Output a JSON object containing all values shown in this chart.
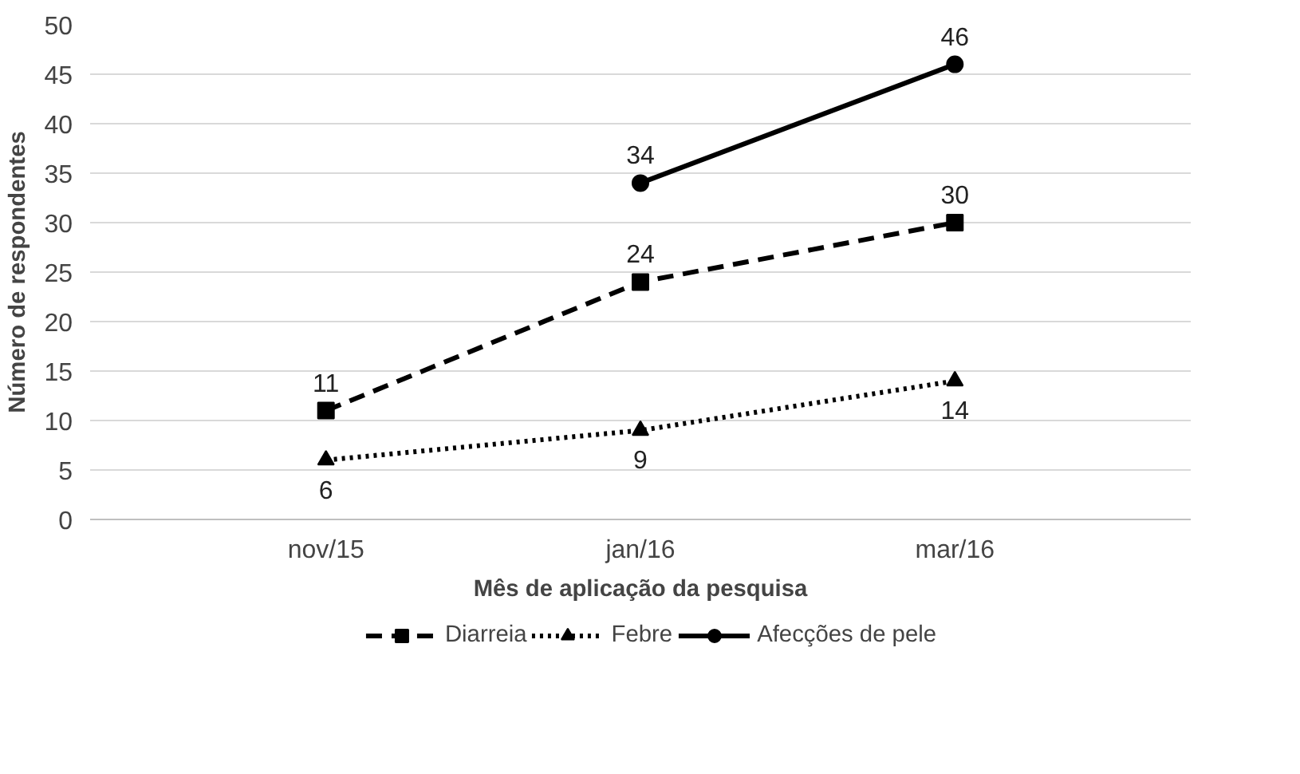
{
  "chart_data": {
    "type": "line",
    "xlabel": "Mês de aplicação da pesquisa",
    "ylabel": "Número de respondentes",
    "categories": [
      "nov/15",
      "jan/16",
      "mar/16"
    ],
    "series": [
      {
        "name": "Diarreia",
        "color": "#000000",
        "values": [
          11,
          24,
          30
        ],
        "marker": "square",
        "line_style": "dashed"
      },
      {
        "name": "Febre",
        "color": "#000000",
        "values": [
          6,
          9,
          14
        ],
        "marker": "triangle",
        "line_style": "dotted"
      },
      {
        "name": "Afecções de pele",
        "color": "#000000",
        "values": [
          null,
          34,
          46
        ],
        "marker": "circle",
        "line_style": "solid"
      }
    ],
    "ylim": [
      0,
      50
    ],
    "yticks": [
      0,
      5,
      10,
      15,
      20,
      25,
      30,
      35,
      40,
      45,
      50
    ],
    "grid": "y",
    "legend": "bottom",
    "data_labels": true
  }
}
